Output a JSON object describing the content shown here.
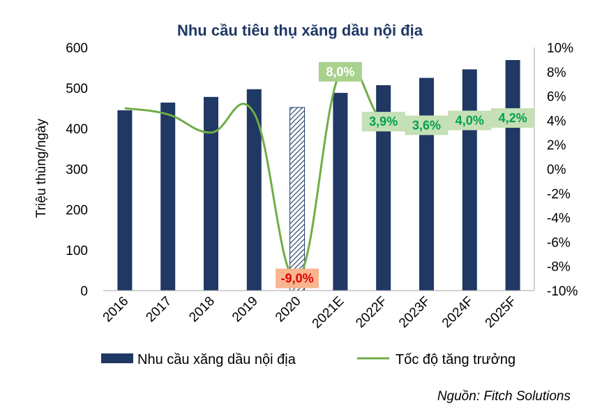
{
  "chart_data": {
    "type": "bar",
    "title": "Nhu cầu tiêu thụ xăng dầu nội địa",
    "ylabel": "Triệu thùng/ngày",
    "categories": [
      "2016",
      "2017",
      "2018",
      "2019",
      "2020",
      "2021E",
      "2022F",
      "2023F",
      "2024F",
      "2025F"
    ],
    "ylim": [
      0,
      600
    ],
    "yticks": [
      "0",
      "100",
      "200",
      "300",
      "400",
      "500",
      "600"
    ],
    "y2lim": [
      -10,
      10
    ],
    "y2ticks": [
      "-10%",
      "-8%",
      "-6%",
      "-4%",
      "-2%",
      "0%",
      "2%",
      "4%",
      "6%",
      "8%",
      "10%"
    ],
    "series": [
      {
        "name": "Nhu cầu xăng dầu nội địa",
        "type": "bar",
        "axis": "left",
        "color": "#1f3864",
        "hatched_category": "2020",
        "values": [
          445,
          464,
          478,
          497,
          452,
          488,
          507,
          525,
          546,
          569
        ]
      },
      {
        "name": "Tốc độ tăng trưởng",
        "type": "line",
        "axis": "right",
        "color": "#70ad47",
        "values": [
          5.0,
          4.5,
          3.0,
          4.6,
          -9.0,
          8.0,
          3.9,
          3.6,
          4.0,
          4.2
        ]
      }
    ],
    "annotations": [
      {
        "category": "2020",
        "text": "-9,0%",
        "bg": "#f8b58f",
        "color": "#e00000"
      },
      {
        "category": "2021E",
        "text": "8,0%",
        "bg": "#a9d18e",
        "color": "#ffffff"
      },
      {
        "category": "2022F",
        "text": "3,9%",
        "bg": "#c5e0b4",
        "color": "#00a050"
      },
      {
        "category": "2023F",
        "text": "3,6%",
        "bg": "#c5e0b4",
        "color": "#00a050"
      },
      {
        "category": "2024F",
        "text": "4,0%",
        "bg": "#c5e0b4",
        "color": "#00a050"
      },
      {
        "category": "2025F",
        "text": "4,2%",
        "bg": "#c5e0b4",
        "color": "#00a050"
      }
    ],
    "legend": "bottom",
    "grid": false
  },
  "source": "Nguồn: Fitch Solutions"
}
